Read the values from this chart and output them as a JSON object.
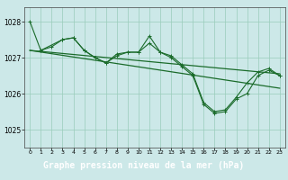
{
  "bg_color": "#cce8e8",
  "plot_bg_color": "#cce8e8",
  "grid_color": "#99ccbb",
  "line_color": "#1a6b2a",
  "xlabel": "Graphe pression niveau de la mer (hPa)",
  "xlabel_fontsize": 7.0,
  "xlabel_bg": "#2d6b2d",
  "xlabel_fg": "#ffffff",
  "ylabel_ticks": [
    1025,
    1026,
    1027,
    1028
  ],
  "xlim": [
    -0.5,
    23.5
  ],
  "ylim": [
    1024.5,
    1028.4
  ],
  "xticks": [
    0,
    1,
    2,
    3,
    4,
    5,
    6,
    7,
    8,
    9,
    10,
    11,
    12,
    13,
    14,
    15,
    16,
    17,
    18,
    19,
    20,
    21,
    22,
    23
  ],
  "series": [
    {
      "x": [
        0,
        1,
        2,
        3,
        4,
        5,
        6,
        7,
        8,
        9,
        10,
        11,
        12,
        13,
        14,
        15,
        16,
        17,
        18,
        19,
        20,
        21,
        22,
        23
      ],
      "y": [
        1028.0,
        1027.2,
        1027.3,
        1027.5,
        1027.55,
        1027.2,
        1027.0,
        1026.85,
        1027.1,
        1027.15,
        1027.15,
        1027.6,
        1027.15,
        1027.05,
        1026.8,
        1026.55,
        1025.75,
        1025.5,
        1025.55,
        1025.9,
        1026.3,
        1026.6,
        1026.7,
        1026.5
      ]
    },
    {
      "x": [
        1,
        3,
        4,
        5,
        6,
        7,
        8,
        9,
        10,
        11,
        12,
        13,
        14,
        15,
        16,
        17,
        18,
        19,
        20,
        21,
        22,
        23
      ],
      "y": [
        1027.2,
        1027.5,
        1027.55,
        1027.2,
        1027.0,
        1026.85,
        1027.05,
        1027.15,
        1027.15,
        1027.4,
        1027.15,
        1027.0,
        1026.75,
        1026.5,
        1025.7,
        1025.45,
        1025.5,
        1025.85,
        1026.0,
        1026.5,
        1026.65,
        1026.5
      ]
    },
    {
      "x": [
        0,
        23
      ],
      "y": [
        1027.2,
        1026.55
      ]
    },
    {
      "x": [
        0,
        23
      ],
      "y": [
        1027.2,
        1026.15
      ]
    }
  ]
}
